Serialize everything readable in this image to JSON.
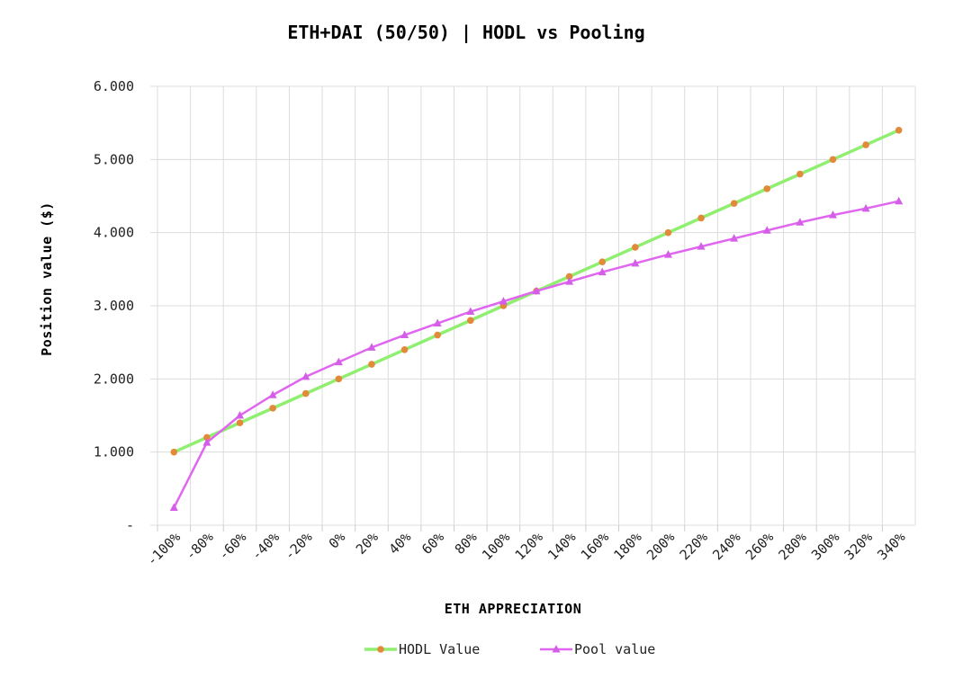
{
  "chart_data": {
    "type": "line",
    "title": "ETH+DAI (50/50) | HODL vs Pooling",
    "xlabel": "ETH APPRECIATION",
    "ylabel": "Position value ($)",
    "categories": [
      "-100%",
      "-80%",
      "-60%",
      "-40%",
      "-20%",
      "0%",
      "20%",
      "40%",
      "60%",
      "80%",
      "100%",
      "120%",
      "140%",
      "160%",
      "180%",
      "200%",
      "220%",
      "240%",
      "260%",
      "280%",
      "300%",
      "320%",
      "340%"
    ],
    "ylim": [
      0,
      6
    ],
    "yticks": [
      {
        "value": 0,
        "label": "-"
      },
      {
        "value": 1,
        "label": "1.000"
      },
      {
        "value": 2,
        "label": "2.000"
      },
      {
        "value": 3,
        "label": "3.000"
      },
      {
        "value": 4,
        "label": "4.000"
      },
      {
        "value": 5,
        "label": "5.000"
      },
      {
        "value": 6,
        "label": "6.000"
      }
    ],
    "grid": true,
    "legend_position": "bottom",
    "series": [
      {
        "name": "HODL Value",
        "color": "#90ee70",
        "marker_color": "#e08a3a",
        "marker": "circle",
        "values": [
          1.0,
          1.2,
          1.4,
          1.6,
          1.8,
          2.0,
          2.2,
          2.4,
          2.6,
          2.8,
          3.0,
          3.2,
          3.4,
          3.6,
          3.8,
          4.0,
          4.2,
          4.4,
          4.6,
          4.8,
          5.0,
          5.2,
          5.4
        ]
      },
      {
        "name": "Pool value",
        "color": "#e066f0",
        "marker_color": "#d55ee8",
        "marker": "triangle",
        "values": [
          0.24,
          1.13,
          1.5,
          1.78,
          2.03,
          2.23,
          2.43,
          2.6,
          2.76,
          2.92,
          3.06,
          3.2,
          3.33,
          3.46,
          3.58,
          3.7,
          3.81,
          3.92,
          4.03,
          4.14,
          4.24,
          4.33,
          4.43
        ]
      }
    ]
  }
}
